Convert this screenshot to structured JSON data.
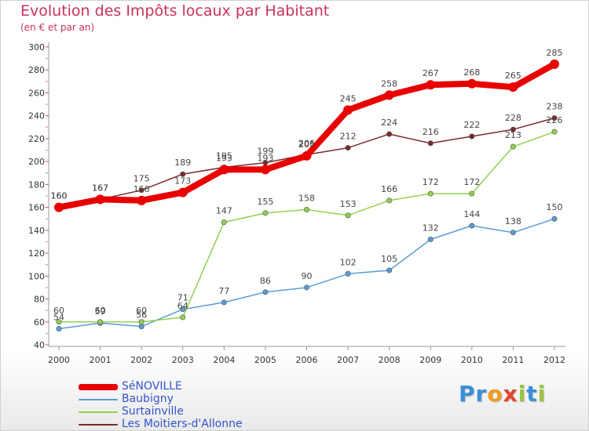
{
  "title": "Evolution des Impôts locaux par Habitant",
  "subtitle": "(en € et par an)",
  "logo": {
    "letters": [
      "P",
      "r",
      "o",
      "x",
      "i",
      "t",
      "i"
    ],
    "colors": [
      "#3a8fd8",
      "#3a8fd8",
      "#f29c1f",
      "#e8432e",
      "#9bc43c",
      "#3a8fd8",
      "#9bc43c"
    ]
  },
  "chart_data": {
    "type": "line",
    "x": [
      "2000",
      "2001",
      "2002",
      "2003",
      "2004",
      "2005",
      "2006",
      "2007",
      "2008",
      "2009",
      "2010",
      "2011",
      "2012"
    ],
    "ylim": [
      40,
      300
    ],
    "yticks": [
      40,
      60,
      80,
      100,
      120,
      140,
      160,
      180,
      200,
      220,
      240,
      260,
      280,
      300
    ],
    "grid": false,
    "legend_position": "bottom-left",
    "series": [
      {
        "name": "Baubigny",
        "color": "#5b9bd5",
        "values": [
          54,
          59,
          56,
          71,
          77,
          86,
          90,
          102,
          105,
          132,
          144,
          138,
          150
        ]
      },
      {
        "name": "Surtainville",
        "color": "#92d050",
        "values": [
          60,
          60,
          60,
          64,
          147,
          155,
          158,
          153,
          166,
          172,
          172,
          213,
          226
        ]
      },
      {
        "name": "Les Moitiers-d'Allonne",
        "color": "#7a2a2a",
        "values": [
          160,
          167,
          175,
          189,
          195,
          199,
          206,
          212,
          224,
          216,
          222,
          228,
          238
        ]
      },
      {
        "name": "SéNOVILLE",
        "color": "#e80000",
        "values": [
          160,
          167,
          166,
          173,
          193,
          193,
          205,
          245,
          258,
          267,
          268,
          265,
          285
        ]
      }
    ],
    "legend_order": [
      3,
      0,
      1,
      2
    ]
  }
}
